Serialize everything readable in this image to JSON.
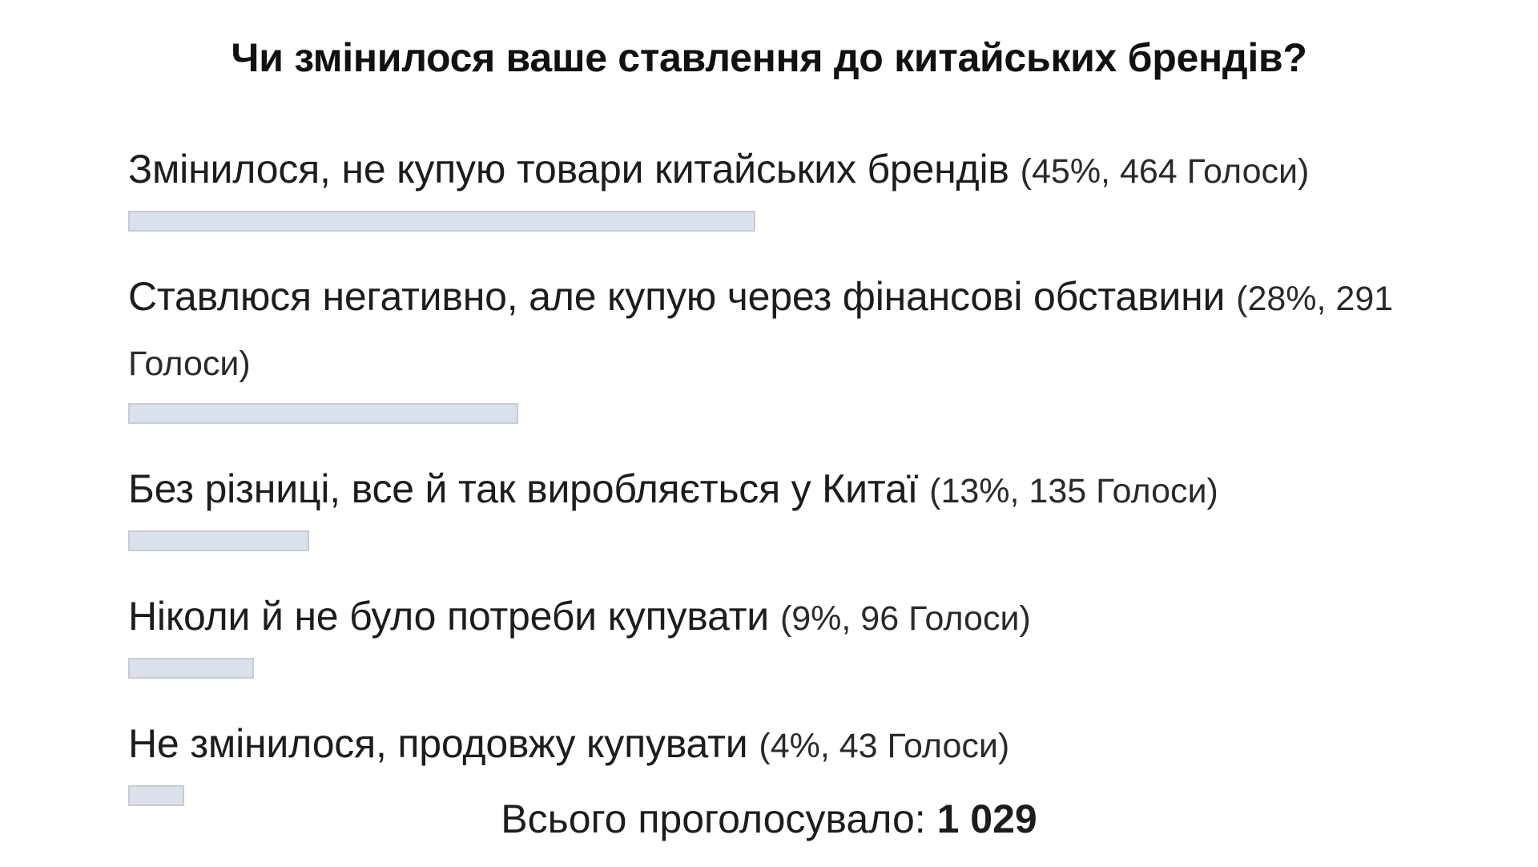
{
  "poll": {
    "title": "Чи змінилося ваше ставлення до китайських брендів?",
    "total_label": "Всього проголосувало:",
    "total_value": "1 029"
  },
  "chart_data": {
    "type": "bar",
    "orientation": "horizontal",
    "title": "Чи змінилося ваше ставлення до китайських брендів?",
    "categories": [
      "Змінилося, не купую товари китайських брендів",
      "Ставлюся негативно, але купую через фінансові обставини",
      "Без різниці, все й так виробляється у Китаї",
      "Ніколи й не було потреби купувати",
      "Не змінилося, продовжу купувати"
    ],
    "percent": [
      45,
      28,
      13,
      9,
      4
    ],
    "votes": [
      464,
      291,
      135,
      96,
      43
    ],
    "stats_text": [
      "(45%, 464 Голоси)",
      "(28%, 291 Голоси)",
      "(13%, 135 Голоси)",
      "(9%, 96 Голоси)",
      "(4%, 43 Голоси)"
    ],
    "total": 1029,
    "colors": {
      "bar_fill": "#dbe1ea",
      "bar_border": "#c5ccd7"
    }
  }
}
